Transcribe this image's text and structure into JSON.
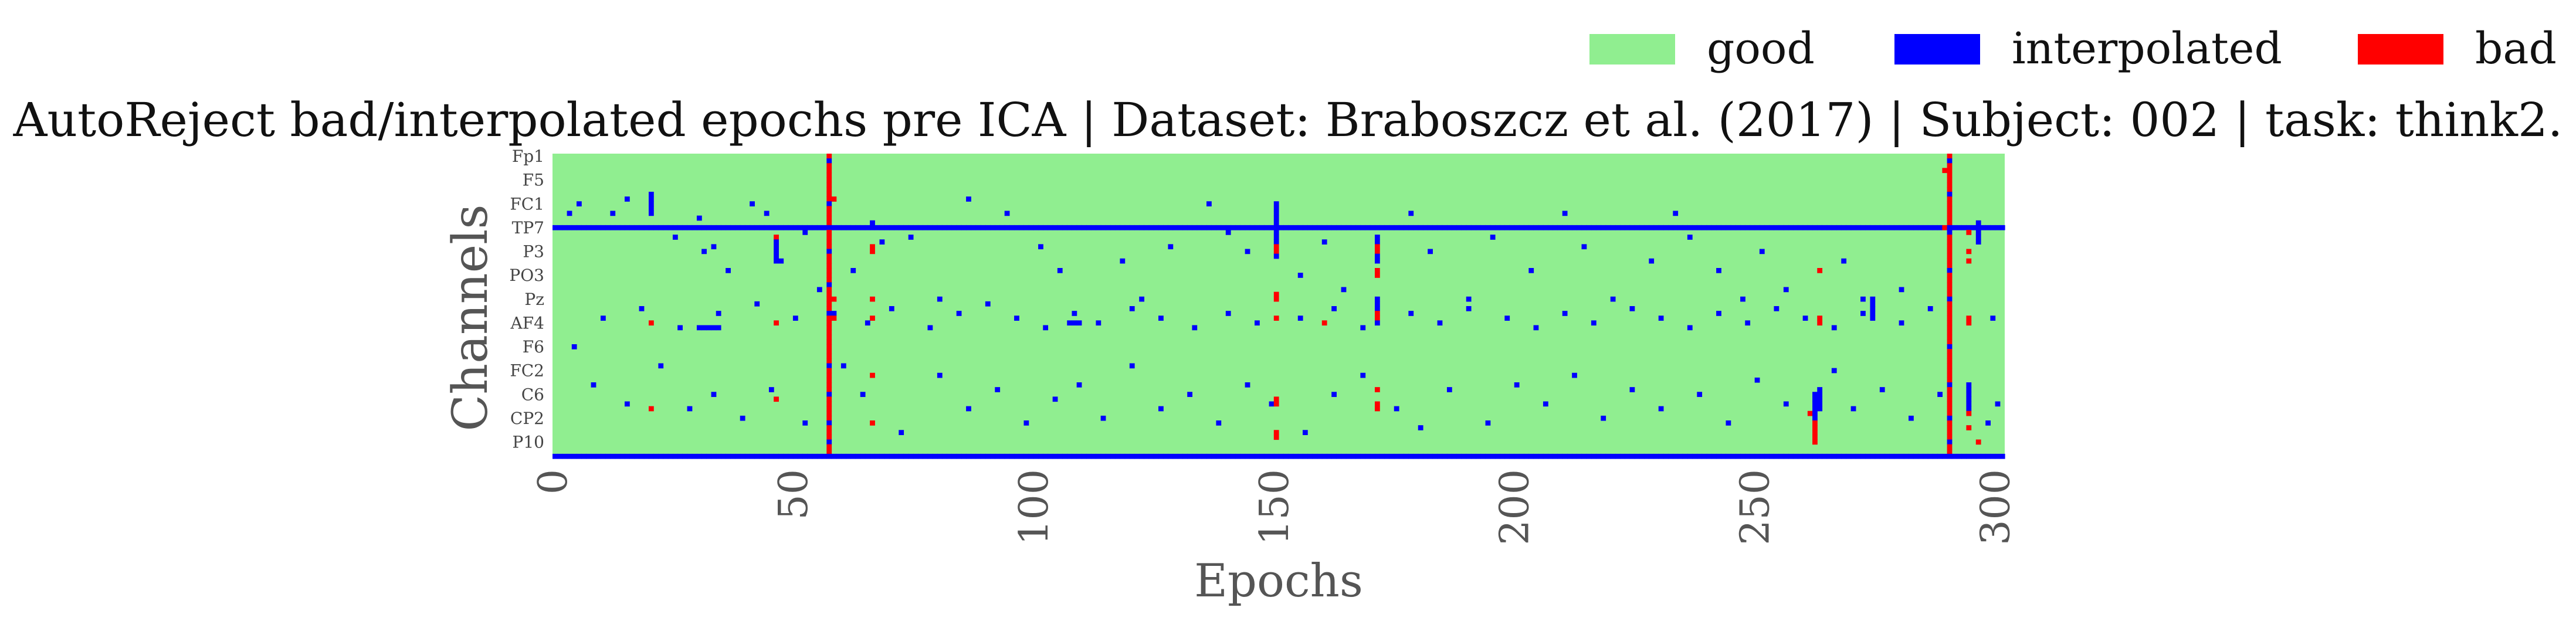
{
  "chart_data": {
    "type": "heatmap",
    "title": "AutoReject bad/interpolated epochs pre ICA | Dataset: Braboszcz et al. (2017) | Subject: 002 | task: think2.",
    "xlabel": "Epochs",
    "ylabel": "Channels",
    "xlim": [
      0,
      302
    ],
    "x_ticks": [
      0,
      50,
      100,
      150,
      200,
      250,
      300
    ],
    "y_tick_labels": [
      "Fp1",
      "F5",
      "FC1",
      "TP7",
      "P3",
      "PO3",
      "Pz",
      "AF4",
      "F6",
      "FC2",
      "C6",
      "CP2",
      "P10"
    ],
    "n_channels": 64,
    "n_epochs": 302,
    "legend": [
      {
        "label": "good",
        "color": "#90ee90",
        "code": 0
      },
      {
        "label": "interpolated",
        "color": "#0000ff",
        "code": 1
      },
      {
        "label": "bad",
        "color": "#ff0000",
        "code": 2
      }
    ],
    "legend_position": "top-right",
    "bad_epochs": [
      57,
      290
    ],
    "fully_interpolated_channels": [
      15,
      63
    ],
    "interpolated_cells": [
      [
        57,
        1
      ],
      [
        57,
        10
      ],
      [
        57,
        20
      ],
      [
        57,
        27
      ],
      [
        57,
        33
      ],
      [
        57,
        44
      ],
      [
        57,
        50
      ],
      [
        57,
        56
      ],
      [
        57,
        60
      ],
      [
        290,
        1
      ],
      [
        290,
        8
      ],
      [
        290,
        16
      ],
      [
        290,
        24
      ],
      [
        290,
        30
      ],
      [
        290,
        40
      ],
      [
        290,
        48
      ],
      [
        290,
        55
      ],
      [
        290,
        60
      ],
      [
        20,
        8
      ],
      [
        20,
        9
      ],
      [
        20,
        10
      ],
      [
        20,
        11
      ],
      [
        20,
        12
      ],
      [
        46,
        18
      ],
      [
        46,
        19
      ],
      [
        46,
        20
      ],
      [
        46,
        21
      ],
      [
        46,
        22
      ],
      [
        150,
        10
      ],
      [
        150,
        11
      ],
      [
        150,
        12
      ],
      [
        150,
        13
      ],
      [
        150,
        14
      ],
      [
        150,
        15
      ],
      [
        150,
        16
      ],
      [
        150,
        17
      ],
      [
        150,
        18
      ],
      [
        150,
        19
      ],
      [
        150,
        20
      ],
      [
        150,
        21
      ],
      [
        171,
        17
      ],
      [
        171,
        18
      ],
      [
        171,
        19
      ],
      [
        171,
        20
      ],
      [
        171,
        21
      ],
      [
        171,
        22
      ],
      [
        171,
        30
      ],
      [
        171,
        31
      ],
      [
        171,
        32
      ],
      [
        171,
        33
      ],
      [
        171,
        34
      ],
      [
        171,
        35
      ],
      [
        296,
        14
      ],
      [
        296,
        15
      ],
      [
        296,
        16
      ],
      [
        296,
        17
      ],
      [
        296,
        18
      ],
      [
        294,
        48
      ],
      [
        294,
        49
      ],
      [
        294,
        50
      ],
      [
        294,
        51
      ],
      [
        294,
        52
      ],
      [
        294,
        53
      ],
      [
        262,
        50
      ],
      [
        262,
        51
      ],
      [
        262,
        52
      ],
      [
        262,
        53
      ],
      [
        262,
        54
      ],
      [
        262,
        55
      ],
      [
        262,
        56
      ],
      [
        262,
        57
      ],
      [
        263,
        49
      ],
      [
        263,
        50
      ],
      [
        263,
        51
      ],
      [
        263,
        52
      ],
      [
        263,
        53
      ],
      [
        274,
        30
      ],
      [
        274,
        31
      ],
      [
        274,
        32
      ],
      [
        274,
        33
      ],
      [
        274,
        34
      ],
      [
        3,
        12
      ],
      [
        5,
        10
      ],
      [
        12,
        12
      ],
      [
        15,
        9
      ],
      [
        25,
        17
      ],
      [
        30,
        13
      ],
      [
        31,
        20
      ],
      [
        33,
        19
      ],
      [
        36,
        24
      ],
      [
        41,
        10
      ],
      [
        44,
        12
      ],
      [
        47,
        22
      ],
      [
        52,
        16
      ],
      [
        55,
        28
      ],
      [
        62,
        24
      ],
      [
        66,
        14
      ],
      [
        68,
        18
      ],
      [
        74,
        17
      ],
      [
        80,
        30
      ],
      [
        86,
        9
      ],
      [
        94,
        12
      ],
      [
        101,
        19
      ],
      [
        105,
        24
      ],
      [
        110,
        15
      ],
      [
        118,
        22
      ],
      [
        122,
        30
      ],
      [
        128,
        19
      ],
      [
        136,
        10
      ],
      [
        140,
        16
      ],
      [
        144,
        20
      ],
      [
        155,
        25
      ],
      [
        160,
        18
      ],
      [
        164,
        28
      ],
      [
        178,
        12
      ],
      [
        182,
        20
      ],
      [
        190,
        30
      ],
      [
        195,
        17
      ],
      [
        203,
        24
      ],
      [
        210,
        12
      ],
      [
        214,
        19
      ],
      [
        220,
        30
      ],
      [
        228,
        22
      ],
      [
        233,
        12
      ],
      [
        236,
        17
      ],
      [
        242,
        24
      ],
      [
        247,
        30
      ],
      [
        251,
        20
      ],
      [
        256,
        28
      ],
      [
        268,
        22
      ],
      [
        272,
        30
      ],
      [
        280,
        28
      ],
      [
        4,
        40
      ],
      [
        8,
        48
      ],
      [
        15,
        52
      ],
      [
        22,
        44
      ],
      [
        28,
        53
      ],
      [
        33,
        50
      ],
      [
        39,
        55
      ],
      [
        45,
        49
      ],
      [
        52,
        56
      ],
      [
        60,
        44
      ],
      [
        64,
        50
      ],
      [
        72,
        58
      ],
      [
        80,
        46
      ],
      [
        86,
        53
      ],
      [
        92,
        49
      ],
      [
        98,
        56
      ],
      [
        104,
        51
      ],
      [
        109,
        48
      ],
      [
        114,
        55
      ],
      [
        120,
        44
      ],
      [
        126,
        53
      ],
      [
        132,
        50
      ],
      [
        138,
        56
      ],
      [
        144,
        48
      ],
      [
        149,
        52
      ],
      [
        156,
        58
      ],
      [
        162,
        50
      ],
      [
        168,
        46
      ],
      [
        175,
        53
      ],
      [
        180,
        57
      ],
      [
        186,
        49
      ],
      [
        194,
        56
      ],
      [
        200,
        48
      ],
      [
        206,
        52
      ],
      [
        212,
        46
      ],
      [
        218,
        55
      ],
      [
        224,
        49
      ],
      [
        230,
        53
      ],
      [
        238,
        50
      ],
      [
        244,
        56
      ],
      [
        250,
        47
      ],
      [
        256,
        52
      ],
      [
        266,
        45
      ],
      [
        270,
        53
      ],
      [
        276,
        49
      ],
      [
        282,
        55
      ],
      [
        288,
        50
      ],
      [
        298,
        56
      ],
      [
        300,
        52
      ],
      [
        10,
        34
      ],
      [
        18,
        32
      ],
      [
        26,
        36
      ],
      [
        34,
        33
      ],
      [
        42,
        31
      ],
      [
        50,
        34
      ],
      [
        58,
        33
      ],
      [
        65,
        35
      ],
      [
        70,
        32
      ],
      [
        78,
        36
      ],
      [
        84,
        33
      ],
      [
        90,
        31
      ],
      [
        96,
        34
      ],
      [
        102,
        36
      ],
      [
        108,
        33
      ],
      [
        113,
        35
      ],
      [
        120,
        32
      ],
      [
        126,
        34
      ],
      [
        133,
        36
      ],
      [
        140,
        33
      ],
      [
        146,
        35
      ],
      [
        155,
        34
      ],
      [
        162,
        32
      ],
      [
        168,
        36
      ],
      [
        178,
        33
      ],
      [
        184,
        35
      ],
      [
        190,
        32
      ],
      [
        198,
        34
      ],
      [
        204,
        36
      ],
      [
        210,
        33
      ],
      [
        216,
        35
      ],
      [
        224,
        32
      ],
      [
        230,
        34
      ],
      [
        236,
        36
      ],
      [
        242,
        33
      ],
      [
        248,
        35
      ],
      [
        254,
        32
      ],
      [
        260,
        34
      ],
      [
        266,
        36
      ],
      [
        272,
        33
      ],
      [
        280,
        35
      ],
      [
        286,
        32
      ],
      [
        299,
        34
      ],
      [
        30,
        36
      ],
      [
        31,
        36
      ],
      [
        32,
        36
      ],
      [
        33,
        36
      ],
      [
        34,
        36
      ],
      [
        107,
        35
      ],
      [
        108,
        35
      ],
      [
        109,
        35
      ]
    ],
    "bad_cells": [
      [
        20,
        35
      ],
      [
        46,
        17
      ],
      [
        46,
        35
      ],
      [
        46,
        51
      ],
      [
        66,
        19
      ],
      [
        66,
        20
      ],
      [
        66,
        46
      ],
      [
        66,
        56
      ],
      [
        150,
        19
      ],
      [
        150,
        20
      ],
      [
        150,
        29
      ],
      [
        150,
        30
      ],
      [
        150,
        34
      ],
      [
        150,
        51
      ],
      [
        150,
        52
      ],
      [
        150,
        58
      ],
      [
        150,
        59
      ],
      [
        160,
        35
      ],
      [
        171,
        19
      ],
      [
        171,
        20
      ],
      [
        171,
        24
      ],
      [
        171,
        25
      ],
      [
        171,
        33
      ],
      [
        171,
        34
      ],
      [
        171,
        49
      ],
      [
        171,
        52
      ],
      [
        171,
        53
      ],
      [
        20,
        53
      ],
      [
        58,
        9
      ],
      [
        58,
        30
      ],
      [
        58,
        34
      ],
      [
        66,
        30
      ],
      [
        66,
        34
      ],
      [
        261,
        54
      ],
      [
        262,
        56
      ],
      [
        262,
        57
      ],
      [
        262,
        58
      ],
      [
        262,
        59
      ],
      [
        262,
        60
      ],
      [
        263,
        24
      ],
      [
        263,
        34
      ],
      [
        263,
        35
      ],
      [
        294,
        16
      ],
      [
        294,
        20
      ],
      [
        294,
        22
      ],
      [
        294,
        34
      ],
      [
        294,
        35
      ],
      [
        294,
        54
      ],
      [
        294,
        57
      ],
      [
        296,
        60
      ],
      [
        289,
        3
      ],
      [
        289,
        15
      ]
    ]
  }
}
